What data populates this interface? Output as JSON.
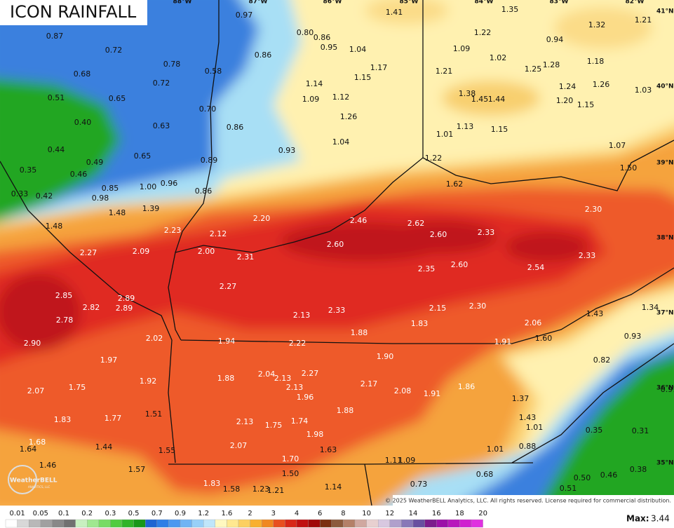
{
  "header": {
    "title": "ICON RAINFALL"
  },
  "longitude_labels": [
    "88°W",
    "87°W",
    "86°W",
    "85°W",
    "84°W",
    "83°W",
    "82°W"
  ],
  "latitude_labels": [
    "41°N",
    "40°N",
    "39°N",
    "38°N",
    "37°N",
    "36°N",
    "35°N"
  ],
  "rainfall_labels": [
    "0.97",
    "1.41",
    "1.35",
    "1.32",
    "1.21",
    "0.87",
    "0.80",
    "0.86",
    "1.22",
    "0.94",
    "0.72",
    "0.95",
    "1.04",
    "1.09",
    "0.86",
    "1.02",
    "1.18",
    "0.78",
    "1.17",
    "1.21",
    "1.25",
    "1.28",
    "0.68",
    "0.58",
    "1.15",
    "0.72",
    "1.14",
    "1.24",
    "1.26",
    "1.03",
    "0.51",
    "0.65",
    "1.09",
    "1.12",
    "1.38",
    "1.45",
    "1.44",
    "1.20",
    "1.15",
    "0.70",
    "0.40",
    "0.63",
    "0.86",
    "1.26",
    "1.13",
    "1.15",
    "1.01",
    "0.44",
    "1.04",
    "0.93",
    "1.07",
    "0.65",
    "0.89",
    "1.22",
    "0.35",
    "0.49",
    "0.46",
    "1.50",
    "0.96",
    "1.00",
    "0.85",
    "0.86",
    "1.62",
    "0.33",
    "0.42",
    "0.98",
    "1.48",
    "1.39",
    "2.30",
    "2.20",
    "2.46",
    "2.62",
    "1.48",
    "2.23",
    "2.12",
    "2.60",
    "2.33",
    "2.60",
    "2.27",
    "2.09",
    "2.00",
    "2.31",
    "2.33",
    "2.35",
    "2.60",
    "2.54",
    "2.27",
    "2.85",
    "2.89",
    "1.34",
    "2.82",
    "2.89",
    "2.13",
    "2.33",
    "2.15",
    "2.30",
    "1.43",
    "2.78",
    "1.88",
    "1.83",
    "2.06",
    "2.02",
    "1.94",
    "2.22",
    "1.91",
    "1.60",
    "0.93",
    "2.90",
    "1.97",
    "1.90",
    "0.82",
    "2.04",
    "2.27",
    "2.13",
    "1.92",
    "1.88",
    "2.17",
    "1.75",
    "2.13",
    "2.08",
    "1.91",
    "1.86",
    "0.91",
    "2.07",
    "1.96",
    "1.37",
    "1.88",
    "1.51",
    "1.77",
    "1.43",
    "1.83",
    "2.13",
    "1.74",
    "1.75",
    "1.01",
    "0.35",
    "0.31",
    "1.98",
    "1.68",
    "1.44",
    "2.07",
    "1.63",
    "0.88",
    "1.01",
    "1.64",
    "1.55",
    "1.70",
    "1.11",
    "1.09",
    "1.46",
    "0.38",
    "0.46",
    "1.57",
    "1.50",
    "0.68",
    "0.50",
    "1.83",
    "1.14",
    "0.73",
    "1.58",
    "1.23",
    "1.21",
    "0.51"
  ],
  "legend": {
    "labels": [
      "0.01",
      "0.05",
      "0.1",
      "0.2",
      "0.3",
      "0.5",
      "0.7",
      "0.9",
      "1.2",
      "1.6",
      "2",
      "3",
      "4",
      "6",
      "8",
      "10",
      "12",
      "14",
      "16",
      "18",
      "20"
    ],
    "colors": [
      "#ffffff",
      "#d8d8d8",
      "#b8b8b8",
      "#a0a0a0",
      "#888888",
      "#707070",
      "#c8f0c0",
      "#a0e890",
      "#78dc64",
      "#50cc40",
      "#30b428",
      "#189818",
      "#1e64d2",
      "#2e7ee6",
      "#4a98f0",
      "#70b4f4",
      "#98d0f8",
      "#c0e6fa",
      "#fff8c0",
      "#ffe890",
      "#fcd060",
      "#f8b030",
      "#f08820",
      "#e85020",
      "#d82818",
      "#c01010",
      "#a00808",
      "#7a3010",
      "#8c5a3c",
      "#b48068",
      "#d0a8a0",
      "#e8d0d0",
      "#d8c8e0",
      "#b0a0cc",
      "#8878b8",
      "#6850a0",
      "#7c1c8c",
      "#9c10a8",
      "#b818bc",
      "#d020d0",
      "#e030e0"
    ]
  },
  "max": {
    "label": "Max:",
    "value": "3.44"
  },
  "copyright": "© 2025 WeatherBELL Analytics, LLC. All rights reserved. License required for commercial distribution.",
  "logo": {
    "name": "WeatherBELL",
    "subtitle": "ANALYTICS, LLC"
  }
}
